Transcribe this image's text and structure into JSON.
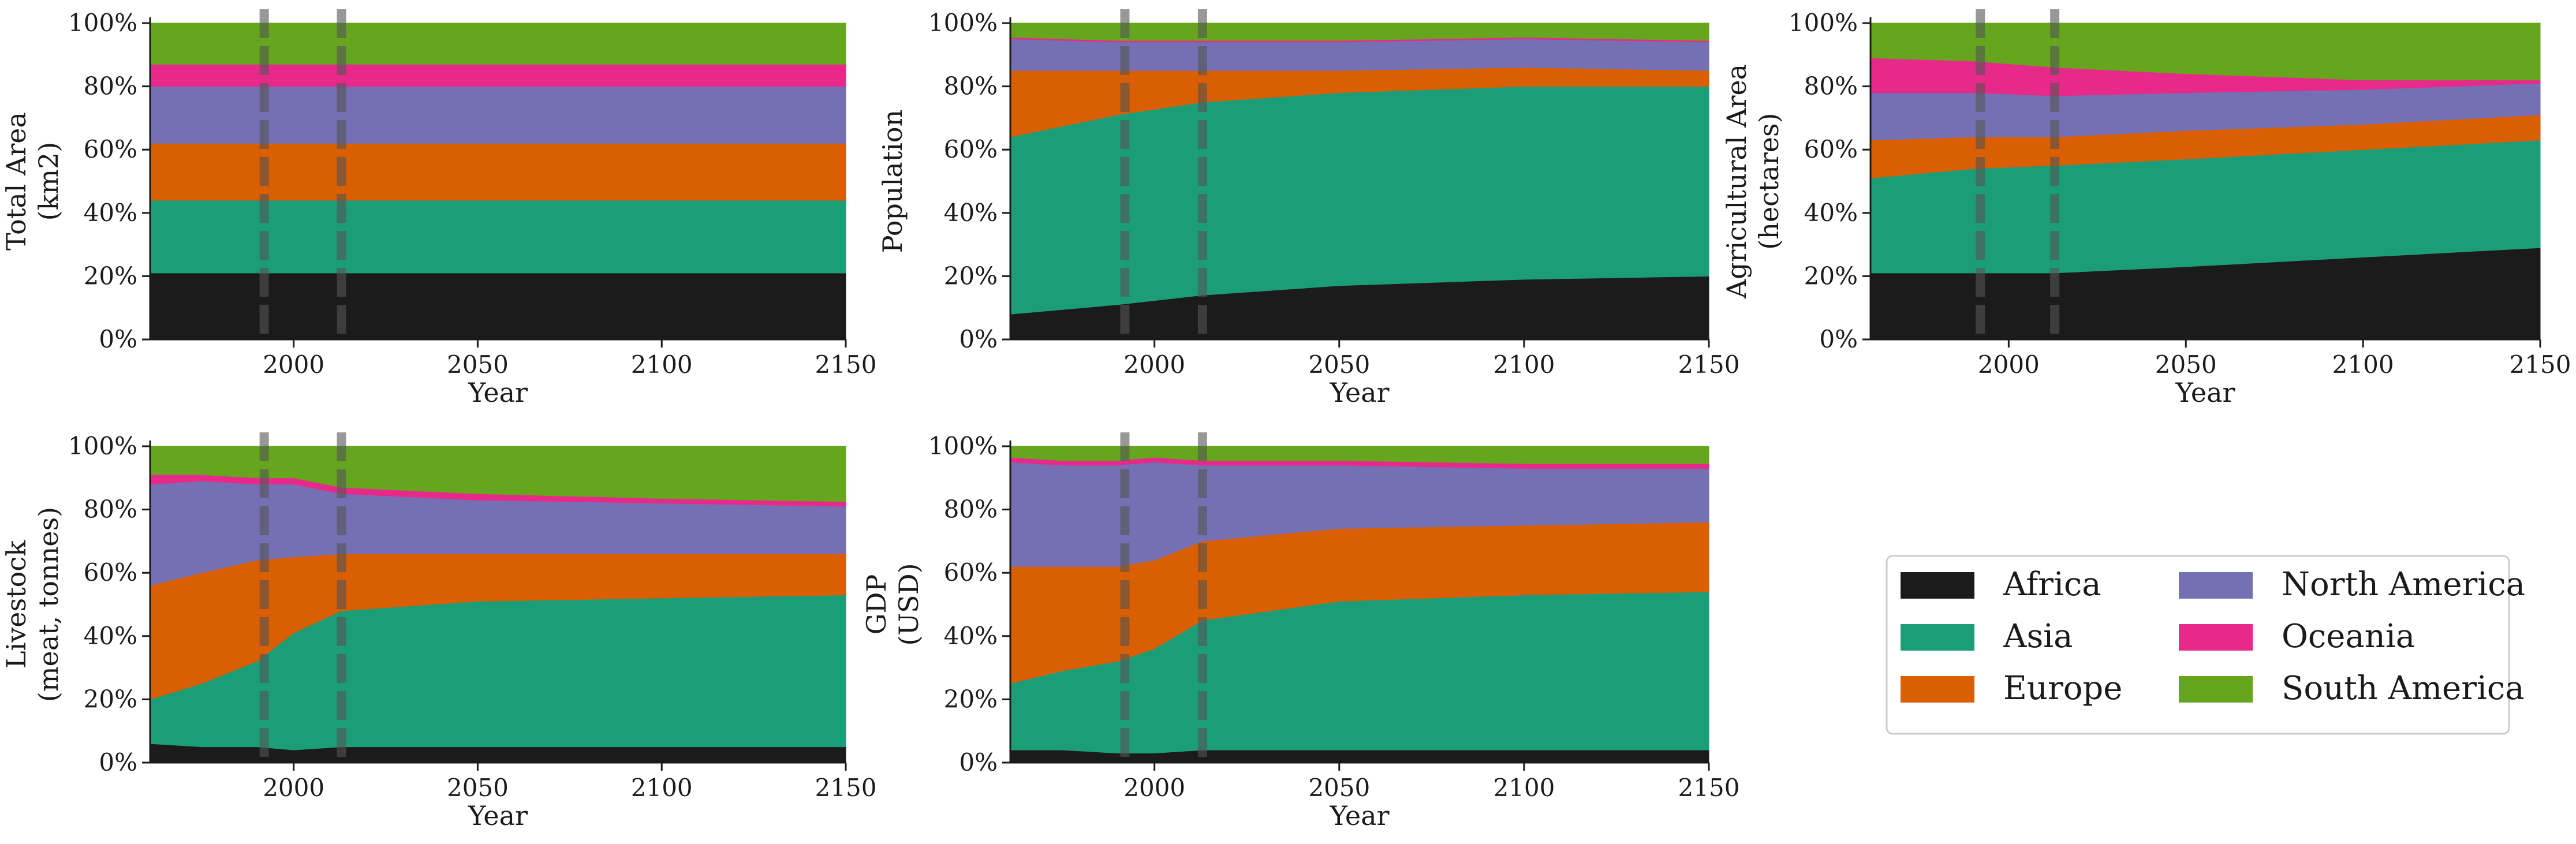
{
  "colors": {
    "Africa": "#1b1b1b",
    "Asia": "#1b9e77",
    "Europe": "#d95f02",
    "North America": "#7570b3",
    "Oceania": "#e7298a",
    "South America": "#66a61e",
    "marker_line": "#555555"
  },
  "chart_data": [
    {
      "type": "area",
      "ylabel": [
        "Total Area",
        "(km2)"
      ],
      "xlabel": "Year",
      "xlim": [
        1961,
        2150
      ],
      "ylim": [
        0,
        100
      ],
      "xticks": [
        2000,
        2050,
        2100,
        2150
      ],
      "yticks": [
        "0%",
        "20%",
        "40%",
        "60%",
        "80%",
        "100%"
      ],
      "vlines": [
        1992,
        2013
      ],
      "stacked": true,
      "percent": true,
      "x": [
        1961,
        1990,
        2013,
        2050,
        2100,
        2150
      ],
      "series": [
        {
          "name": "Africa",
          "values": [
            21,
            21,
            21,
            21,
            21,
            21
          ]
        },
        {
          "name": "Asia",
          "values": [
            23,
            23,
            23,
            23,
            23,
            23
          ]
        },
        {
          "name": "Europe",
          "values": [
            18,
            18,
            18,
            18,
            18,
            18
          ]
        },
        {
          "name": "North America",
          "values": [
            18,
            18,
            18,
            18,
            18,
            18
          ]
        },
        {
          "name": "Oceania",
          "values": [
            7,
            7,
            7,
            7,
            7,
            7
          ]
        },
        {
          "name": "South America",
          "values": [
            13,
            13,
            13,
            13,
            13,
            13
          ]
        }
      ]
    },
    {
      "type": "area",
      "ylabel": [
        "Population"
      ],
      "xlabel": "Year",
      "xlim": [
        1961,
        2150
      ],
      "ylim": [
        0,
        100
      ],
      "xticks": [
        2000,
        2050,
        2100,
        2150
      ],
      "yticks": [
        "0%",
        "20%",
        "40%",
        "60%",
        "80%",
        "100%"
      ],
      "vlines": [
        1992,
        2013
      ],
      "stacked": true,
      "percent": true,
      "x": [
        1961,
        1990,
        2013,
        2050,
        2100,
        2150
      ],
      "series": [
        {
          "name": "Africa",
          "values": [
            8,
            11,
            14,
            17,
            19,
            20
          ]
        },
        {
          "name": "Asia",
          "values": [
            56,
            60,
            61,
            61,
            61,
            60
          ]
        },
        {
          "name": "Europe",
          "values": [
            21,
            14,
            10,
            7,
            6,
            5
          ]
        },
        {
          "name": "North America",
          "values": [
            10,
            9,
            9,
            9,
            9,
            9
          ]
        },
        {
          "name": "Oceania",
          "values": [
            0.5,
            0.5,
            0.5,
            0.5,
            0.5,
            0.5
          ]
        },
        {
          "name": "South America",
          "values": [
            4.5,
            5.5,
            5.5,
            5.5,
            4.5,
            5.5
          ]
        }
      ]
    },
    {
      "type": "area",
      "ylabel": [
        "Agricultural Area",
        "(hectares)"
      ],
      "xlabel": "Year",
      "xlim": [
        1961,
        2150
      ],
      "ylim": [
        0,
        100
      ],
      "xticks": [
        2000,
        2050,
        2100,
        2150
      ],
      "yticks": [
        "0%",
        "20%",
        "40%",
        "60%",
        "80%",
        "100%"
      ],
      "vlines": [
        1992,
        2013
      ],
      "stacked": true,
      "percent": true,
      "x": [
        1961,
        1990,
        2013,
        2050,
        2100,
        2150
      ],
      "series": [
        {
          "name": "Africa",
          "values": [
            21,
            21,
            21,
            23,
            26,
            29
          ]
        },
        {
          "name": "Asia",
          "values": [
            30,
            33,
            34,
            34,
            34,
            34
          ]
        },
        {
          "name": "Europe",
          "values": [
            12,
            10,
            9,
            9,
            8,
            8
          ]
        },
        {
          "name": "North America",
          "values": [
            15,
            14,
            13,
            12,
            11,
            10
          ]
        },
        {
          "name": "Oceania",
          "values": [
            11,
            10,
            9,
            6,
            3,
            1
          ]
        },
        {
          "name": "South America",
          "values": [
            11,
            12,
            14,
            16,
            18,
            18
          ]
        }
      ]
    },
    {
      "type": "area",
      "ylabel": [
        "Livestock",
        "(meat, tonnes)"
      ],
      "xlabel": "Year",
      "xlim": [
        1961,
        2150
      ],
      "ylim": [
        0,
        100
      ],
      "xticks": [
        2000,
        2050,
        2100,
        2150
      ],
      "yticks": [
        "0%",
        "20%",
        "40%",
        "60%",
        "80%",
        "100%"
      ],
      "vlines": [
        1992,
        2013
      ],
      "stacked": true,
      "percent": true,
      "x": [
        1961,
        1975,
        1990,
        2000,
        2013,
        2050,
        2100,
        2150
      ],
      "series": [
        {
          "name": "Africa",
          "values": [
            6,
            5,
            5,
            4,
            5,
            5,
            5,
            5
          ]
        },
        {
          "name": "Asia",
          "values": [
            14,
            20,
            27,
            37,
            43,
            46,
            47,
            48
          ]
        },
        {
          "name": "Europe",
          "values": [
            36,
            35,
            32,
            24,
            18,
            15,
            14,
            13
          ]
        },
        {
          "name": "North America",
          "values": [
            32,
            29,
            24,
            23,
            19,
            17,
            16,
            15
          ]
        },
        {
          "name": "Oceania",
          "values": [
            3,
            2,
            2,
            2,
            2,
            2,
            1.5,
            1.5
          ]
        },
        {
          "name": "South America",
          "values": [
            9,
            9,
            10,
            10,
            13,
            15,
            16.5,
            17.5
          ]
        }
      ]
    },
    {
      "type": "area",
      "ylabel": [
        "GDP",
        "(USD)"
      ],
      "xlabel": "Year",
      "xlim": [
        1961,
        2150
      ],
      "ylim": [
        0,
        100
      ],
      "xticks": [
        2000,
        2050,
        2100,
        2150
      ],
      "yticks": [
        "0%",
        "20%",
        "40%",
        "60%",
        "80%",
        "100%"
      ],
      "vlines": [
        1992,
        2013
      ],
      "stacked": true,
      "percent": true,
      "x": [
        1961,
        1975,
        1990,
        2000,
        2013,
        2050,
        2100,
        2150
      ],
      "series": [
        {
          "name": "Africa",
          "values": [
            4,
            4,
            3,
            3,
            4,
            4,
            4,
            4
          ]
        },
        {
          "name": "Asia",
          "values": [
            21,
            25,
            29,
            33,
            41,
            47,
            49,
            50
          ]
        },
        {
          "name": "Europe",
          "values": [
            37,
            33,
            30,
            28,
            25,
            23,
            22,
            22
          ]
        },
        {
          "name": "North America",
          "values": [
            33,
            32,
            32,
            31,
            24,
            20,
            18,
            17
          ]
        },
        {
          "name": "Oceania",
          "values": [
            1.5,
            1.5,
            1.5,
            1.5,
            1.5,
            1.5,
            1.5,
            1.5
          ]
        },
        {
          "name": "South America",
          "values": [
            3.5,
            4.5,
            4.5,
            3.5,
            4.5,
            4.5,
            5.5,
            5.5
          ]
        }
      ]
    }
  ],
  "legend": {
    "entries": [
      "Africa",
      "Asia",
      "Europe",
      "North America",
      "Oceania",
      "South America"
    ],
    "columns": 2
  }
}
